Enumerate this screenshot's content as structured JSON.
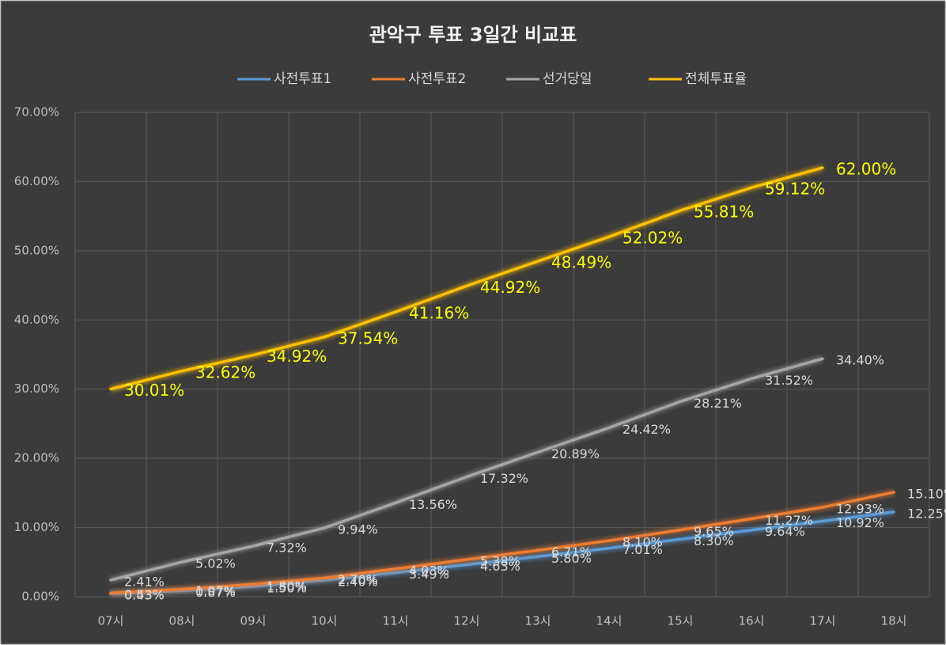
{
  "chart_data": {
    "type": "line",
    "title": "관악구 투표 3일간 비교표",
    "categories": [
      "07시",
      "08시",
      "09시",
      "10시",
      "11시",
      "12시",
      "13시",
      "14시",
      "15시",
      "16시",
      "17시",
      "18시"
    ],
    "series": [
      {
        "name": "사전투표1",
        "color": "#5b9bd5",
        "label_color": "#d9d9d9",
        "values": [
          0.43,
          0.87,
          1.5,
          2.4,
          3.49,
          4.63,
          5.8,
          7.01,
          8.3,
          9.64,
          10.92,
          12.25
        ],
        "value_labels": [
          "0.43%",
          "0.87%",
          "1.50%",
          "2.40%",
          "3.49%",
          "4.63%",
          "5.80%",
          "7.01%",
          "8.30%",
          "9.64%",
          "10.92%",
          "12.25%"
        ]
      },
      {
        "name": "사전투표2",
        "color": "#ed7d31",
        "label_color": "#d9d9d9",
        "values": [
          0.53,
          1.07,
          1.8,
          2.7,
          4.03,
          5.38,
          6.71,
          8.1,
          9.65,
          11.27,
          12.93,
          15.1
        ],
        "value_labels": [
          "0.53%",
          "1.07%",
          "1.80%",
          "2.70%",
          "4.03%",
          "5.38%",
          "6.71%",
          "8.10%",
          "9.65%",
          "11.27%",
          "12.93%",
          "15.10%"
        ]
      },
      {
        "name": "선거당일",
        "color": "#a5a5a5",
        "label_color": "#d9d9d9",
        "values": [
          2.41,
          5.02,
          7.32,
          9.94,
          13.56,
          17.32,
          20.89,
          24.42,
          28.21,
          31.52,
          34.4,
          null
        ],
        "value_labels": [
          "2.41%",
          "5.02%",
          "7.32%",
          "9.94%",
          "13.56%",
          "17.32%",
          "20.89%",
          "24.42%",
          "28.21%",
          "31.52%",
          "34.40%",
          null
        ]
      },
      {
        "name": "전체투표율",
        "color": "#ffc000",
        "label_color": "#ffff00",
        "values": [
          30.01,
          32.62,
          34.92,
          37.54,
          41.16,
          44.92,
          48.49,
          52.02,
          55.81,
          59.12,
          62.0,
          null
        ],
        "value_labels": [
          "30.01%",
          "32.62%",
          "34.92%",
          "37.54%",
          "41.16%",
          "44.92%",
          "48.49%",
          "52.02%",
          "55.81%",
          "59.12%",
          "62.00%",
          null
        ]
      }
    ],
    "ylim": [
      0,
      70
    ],
    "yticks": [
      {
        "value": 0,
        "label": "0.00%"
      },
      {
        "value": 10,
        "label": "10.00%"
      },
      {
        "value": 20,
        "label": "20.00%"
      },
      {
        "value": 30,
        "label": "30.00%"
      },
      {
        "value": 40,
        "label": "40.00%"
      },
      {
        "value": 50,
        "label": "50.00%"
      },
      {
        "value": 60,
        "label": "60.00%"
      },
      {
        "value": 70,
        "label": "70.00%"
      }
    ],
    "grid": true,
    "legend": "top"
  }
}
